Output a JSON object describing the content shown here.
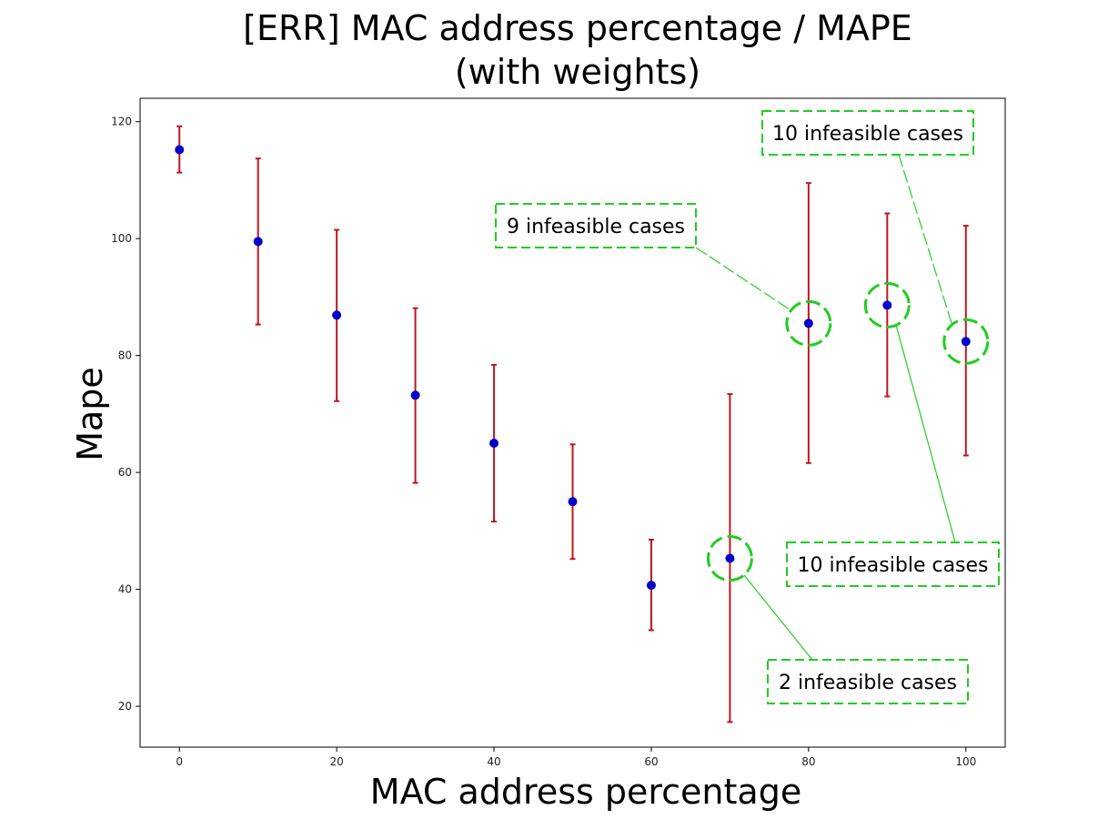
{
  "chart_data": {
    "type": "scatter",
    "title_line1": "[ERR] MAC address percentage / MAPE",
    "title_line2": "(with weights)",
    "xlabel": "MAC address percentage",
    "ylabel": "Mape",
    "xlim": [
      -5,
      105
    ],
    "ylim": [
      13,
      124
    ],
    "xticks": [
      0,
      20,
      40,
      60,
      80,
      100
    ],
    "yticks": [
      20,
      40,
      60,
      80,
      100,
      120
    ],
    "grid": false,
    "series": [
      {
        "x": [
          0,
          10,
          20,
          30,
          40,
          50,
          60,
          70,
          80,
          90,
          100
        ],
        "y": [
          115.2,
          99.5,
          86.9,
          73.2,
          65.0,
          55.0,
          40.7,
          45.3,
          85.5,
          88.6,
          82.4
        ],
        "err_low": [
          111.3,
          85.3,
          72.2,
          58.2,
          51.6,
          45.2,
          33.0,
          17.3,
          61.6,
          73.0,
          62.9
        ],
        "err_high": [
          119.2,
          113.7,
          101.5,
          88.1,
          78.4,
          64.8,
          48.5,
          73.4,
          109.5,
          104.3,
          102.2
        ]
      }
    ],
    "colors": {
      "marker": "#0000cc",
      "errorbar": "#c0161e",
      "annotation": "#22cc22"
    },
    "annotations": [
      {
        "text": "9 infeasible cases",
        "target_x": 80,
        "target_y": 85.5
      },
      {
        "text": "10 infeasible cases",
        "target_x": 100,
        "target_y": 82.4
      },
      {
        "text": "10 infeasible cases",
        "target_x": 90,
        "target_y": 88.6
      },
      {
        "text": "2 infeasible cases",
        "target_x": 70,
        "target_y": 45.3
      }
    ]
  }
}
